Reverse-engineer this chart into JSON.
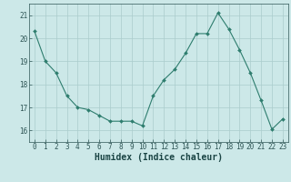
{
  "x": [
    0,
    1,
    2,
    3,
    4,
    5,
    6,
    7,
    8,
    9,
    10,
    11,
    12,
    13,
    14,
    15,
    16,
    17,
    18,
    19,
    20,
    21,
    22,
    23
  ],
  "y": [
    20.3,
    19.0,
    18.5,
    17.5,
    17.0,
    16.9,
    16.65,
    16.4,
    16.4,
    16.4,
    16.2,
    17.5,
    18.2,
    18.65,
    19.35,
    20.2,
    20.2,
    21.1,
    20.4,
    19.5,
    18.5,
    17.3,
    16.05,
    16.5
  ],
  "line_color": "#2e7d6e",
  "marker": "D",
  "marker_size": 2.0,
  "bg_color": "#cce8e8",
  "grid_color": "#aacccc",
  "tick_color": "#2e5555",
  "label_color": "#1a4444",
  "xlabel": "Humidex (Indice chaleur)",
  "ylim": [
    15.5,
    21.5
  ],
  "yticks": [
    16,
    17,
    18,
    19,
    20,
    21
  ],
  "xticks": [
    0,
    1,
    2,
    3,
    4,
    5,
    6,
    7,
    8,
    9,
    10,
    11,
    12,
    13,
    14,
    15,
    16,
    17,
    18,
    19,
    20,
    21,
    22,
    23
  ],
  "tick_fontsize": 5.5,
  "label_fontsize": 7.0
}
